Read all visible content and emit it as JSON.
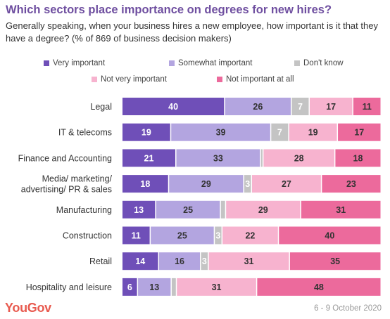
{
  "title": "Which sectors place importance on degrees for new hires?",
  "subtitle": "Generally speaking, when your business hires a new employee, how important is it that they have a degree? (% of 869 of business decision makers)",
  "footer": {
    "brand": "YouGov",
    "date": "6 - 9 October 2020"
  },
  "chart_data": {
    "type": "bar",
    "orientation": "horizontal",
    "stacked": true,
    "xlim": [
      0,
      100
    ],
    "grid": false,
    "legend_position": "top",
    "categories": [
      "Legal",
      "IT & telecoms",
      "Finance and Accounting",
      "Media/ marketing/ advertising/ PR & sales",
      "Manufacturing",
      "Construction",
      "Retail",
      "Hospitality and leisure"
    ],
    "category_lines": [
      [
        "Legal"
      ],
      [
        "IT & telecoms"
      ],
      [
        "Finance and Accounting"
      ],
      [
        "Media/ marketing/",
        "advertising/ PR & sales"
      ],
      [
        "Manufacturing"
      ],
      [
        "Construction"
      ],
      [
        "Retail"
      ],
      [
        "Hospitality and leisure"
      ]
    ],
    "series": [
      {
        "name": "Very important",
        "color": "#6f4fb8",
        "label_color": "#ffffff",
        "values": [
          40,
          19,
          21,
          18,
          13,
          11,
          14,
          6
        ]
      },
      {
        "name": "Somewhat important",
        "color": "#b3a5e0",
        "label_color": "#333333",
        "values": [
          26,
          39,
          33,
          29,
          25,
          25,
          16,
          13
        ]
      },
      {
        "name": "Don't know",
        "color": "#c4c4c4",
        "label_color": "#ffffff",
        "values": [
          7,
          7,
          1,
          3,
          2,
          3,
          3,
          2
        ]
      },
      {
        "name": "Not very important",
        "color": "#f7b3cf",
        "label_color": "#333333",
        "values": [
          17,
          19,
          28,
          27,
          29,
          22,
          31,
          31
        ]
      },
      {
        "name": "Not important at all",
        "color": "#ec6a9c",
        "label_color": "#333333",
        "values": [
          11,
          17,
          18,
          23,
          31,
          40,
          35,
          48
        ]
      }
    ],
    "value_labels": [
      [
        "40",
        "26",
        "7",
        "17",
        "11"
      ],
      [
        "19",
        "39",
        "7",
        "19",
        "17"
      ],
      [
        "21",
        "33",
        "",
        "28",
        "18"
      ],
      [
        "18",
        "29",
        "3",
        "27",
        "23"
      ],
      [
        "13",
        "25",
        "",
        "29",
        "31"
      ],
      [
        "11",
        "25",
        "3",
        "22",
        "40"
      ],
      [
        "14",
        "16",
        "3",
        "31",
        "35"
      ],
      [
        "6",
        "13",
        "",
        "31",
        "48"
      ]
    ]
  }
}
